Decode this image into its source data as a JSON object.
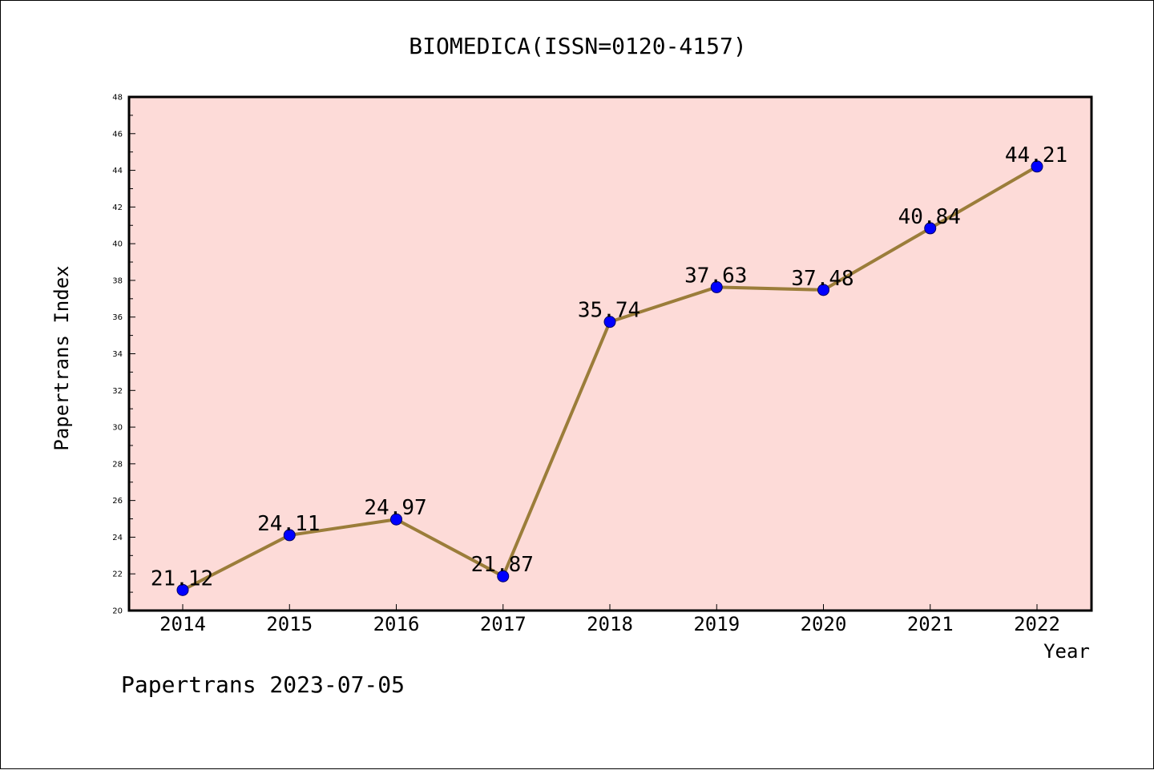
{
  "chart_data": {
    "type": "line",
    "title": "BIOMEDICA(ISSN=0120-4157)",
    "xlabel": "Year",
    "ylabel": "Papertrans Index",
    "categories": [
      "2014",
      "2015",
      "2016",
      "2017",
      "2018",
      "2019",
      "2020",
      "2021",
      "2022"
    ],
    "series": [
      {
        "values": [
          21.12,
          24.11,
          24.97,
          21.87,
          35.74,
          37.63,
          37.48,
          40.84,
          44.21
        ],
        "labels": [
          "21.12",
          "24.11",
          "24.97",
          "21.87",
          "35.74",
          "37.63",
          "37.48",
          "40.84",
          "44.21"
        ]
      }
    ],
    "ylim": [
      20,
      48
    ],
    "yticks": [
      "20",
      "22",
      "24",
      "26",
      "28",
      "30",
      "32",
      "34",
      "36",
      "38",
      "40",
      "42",
      "44",
      "46",
      "48"
    ],
    "grid": false,
    "legend": "none",
    "colors": {
      "plot_background": "#fddbd8",
      "line": "#9b7d3a",
      "marker": "#0000ff",
      "marker_edge": "#000066",
      "axis": "#000000"
    }
  },
  "footer": {
    "note": "Papertrans 2023-07-05"
  }
}
